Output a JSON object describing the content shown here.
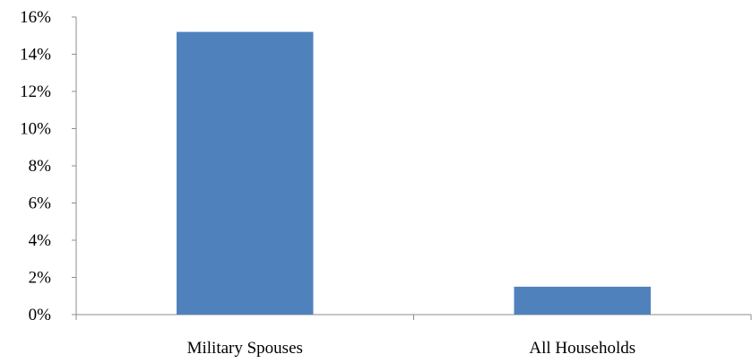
{
  "chart_data": {
    "type": "bar",
    "categories": [
      "Military Spouses",
      "All Households"
    ],
    "values": [
      0.152,
      0.015
    ],
    "ylim": [
      0,
      0.16
    ],
    "yticks": [
      0,
      0.02,
      0.04,
      0.06,
      0.08,
      0.1,
      0.12,
      0.14,
      0.16
    ],
    "ytick_labels": [
      "0%",
      "2%",
      "4%",
      "6%",
      "8%",
      "10%",
      "12%",
      "14%",
      "16%"
    ],
    "bar_color": "#4f81bd",
    "grid": false,
    "legend": "none",
    "title": "",
    "xlabel": "",
    "ylabel": ""
  }
}
